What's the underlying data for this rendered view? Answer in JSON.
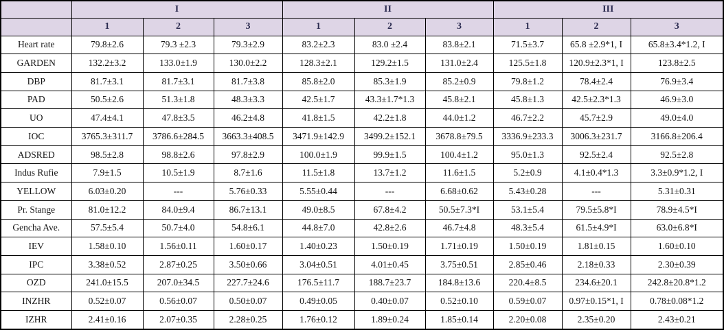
{
  "table": {
    "corner_label": "",
    "colors": {
      "header_bg": "#ded5e6",
      "header_text": "#2a2a4f",
      "body_text": "#151515",
      "border": "#000000"
    },
    "groups": [
      {
        "label": "I",
        "subcolumns": [
          "1",
          "2",
          "3"
        ]
      },
      {
        "label": "II",
        "subcolumns": [
          "1",
          "2",
          "3"
        ]
      },
      {
        "label": "III",
        "subcolumns": [
          "1",
          "2",
          "3"
        ]
      }
    ],
    "rows": [
      {
        "label": "Heart rate",
        "values": [
          "79.8±2.6",
          "79.3 ±2.3",
          "79.3±2.9",
          "83.2±2.3",
          "83.0 ±2.4",
          "83.8±2.1",
          "71.5±3.7",
          "65.8 ±2.9*1, I",
          "65.8±3.4*1.2, I"
        ]
      },
      {
        "label": "GARDEN",
        "values": [
          "132.2±3.2",
          "133.0±1.9",
          "130.0±2.2",
          "128.3±2.1",
          "129.2±1.5",
          "131.0±2.4",
          "125.5±1.8",
          "120.9±2.3*1, I",
          "123.8±2.5"
        ]
      },
      {
        "label": "DBP",
        "values": [
          "81.7±3.1",
          "81.7±3.1",
          "81.7±3.8",
          "85.8±2.0",
          "85.3±1.9",
          "85.2±0.9",
          "79.8±1.2",
          "78.4±2.4",
          "76.9±3.4"
        ]
      },
      {
        "label": "PAD",
        "values": [
          "50.5±2.6",
          "51.3±1.8",
          "48.3±3.3",
          "42.5±1.7",
          "43.3±1.7*1.3",
          "45.8±2.1",
          "45.8±1.3",
          "42.5±2.3*1.3",
          "46.9±3.0"
        ]
      },
      {
        "label": "UO",
        "values": [
          "47.4±4.1",
          "47.8±3.5",
          "46.2±4.8",
          "41.8±1.5",
          "42.2±1.8",
          "44.0±1.2",
          "46.7±2.2",
          "45.7±2.9",
          "49.0±4.0"
        ]
      },
      {
        "label": "IOC",
        "values": [
          "3765.3±311.7",
          "3786.6±284.5",
          "3663.3±408.5",
          "3471.9±142.9",
          "3499.2±152.1",
          "3678.8±79.5",
          "3336.9±233.3",
          "3006.3±231.7",
          "3166.8±206.4"
        ]
      },
      {
        "label": "ADSRED",
        "values": [
          "98.5±2.8",
          "98.8±2.6",
          "97.8±2.9",
          "100.0±1.9",
          "99.9±1.5",
          "100.4±1.2",
          "95.0±1.3",
          "92.5±2.4",
          "92.5±2.8"
        ]
      },
      {
        "label": "Indus Rufie",
        "values": [
          "7.9±1.5",
          "10.5±1.9",
          "8.7±1.6",
          "11.5±1.8",
          "13.7±1.2",
          "11.6±1.5",
          "5.2±0.9",
          "4.1±0.4*1.3",
          "3.3±0.9*1.2, I"
        ]
      },
      {
        "label": "YELLOW",
        "values": [
          "6.03±0.20",
          "---",
          "5.76±0.33",
          "5.55±0.44",
          "---",
          "6.68±0.62",
          "5.43±0.28",
          "---",
          "5.31±0.31"
        ]
      },
      {
        "label": "Pr. Stange",
        "values": [
          "81.0±12.2",
          "84.0±9.4",
          "86.7±13.1",
          "49.0±8.5",
          "67.8±4.2",
          "50.5±7.3*I",
          "53.1±5.4",
          "79.5±5.8*I",
          "78.9±4.5*I"
        ]
      },
      {
        "label": "Gencha Ave.",
        "values": [
          "57.5±5.4",
          "50.7±4.0",
          "54.8±6.1",
          "44.8±7.0",
          "42.8±2.6",
          "46.7±4.8",
          "48.3±5.4",
          "61.5±4.9*I",
          "63.0±6.8*I"
        ]
      },
      {
        "label": "IEV",
        "values": [
          "1.58±0.10",
          "1.56±0.11",
          "1.60±0.17",
          "1.40±0.23",
          "1.50±0.19",
          "1.71±0.19",
          "1.50±0.19",
          "1.81±0.15",
          "1.60±0.10"
        ]
      },
      {
        "label": "IPC",
        "values": [
          "3.38±0.52",
          "2.87±0.25",
          "3.50±0.66",
          "3.04±0.51",
          "4.01±0.45",
          "3.75±0.51",
          "2.85±0.46",
          "2.18±0.33",
          "2.30±0.39"
        ]
      },
      {
        "label": "OZD",
        "values": [
          "241.0±15.5",
          "207.0±34.5",
          "227.7±24.6",
          "176.5±11.7",
          "188.7±23.7",
          "184.8±13.6",
          "220.4±8.5",
          "234.6±20.1",
          "242.8±20.8*1.2"
        ]
      },
      {
        "label": "INZHR",
        "values": [
          "0.52±0.07",
          "0.56±0.07",
          "0.50±0.07",
          "0.49±0.05",
          "0.40±0.07",
          "0.52±0.10",
          "0.59±0.07",
          "0.97±0.15*1, I",
          "0.78±0.08*1.2"
        ]
      },
      {
        "label": "IZHR",
        "values": [
          "2.41±0.16",
          "2.07±0.35",
          "2.28±0.25",
          "1.76±0.12",
          "1.89±0.24",
          "1.85±0.14",
          "2.20±0.08",
          "2.35±0.20",
          "2.43±0.21"
        ]
      }
    ]
  }
}
